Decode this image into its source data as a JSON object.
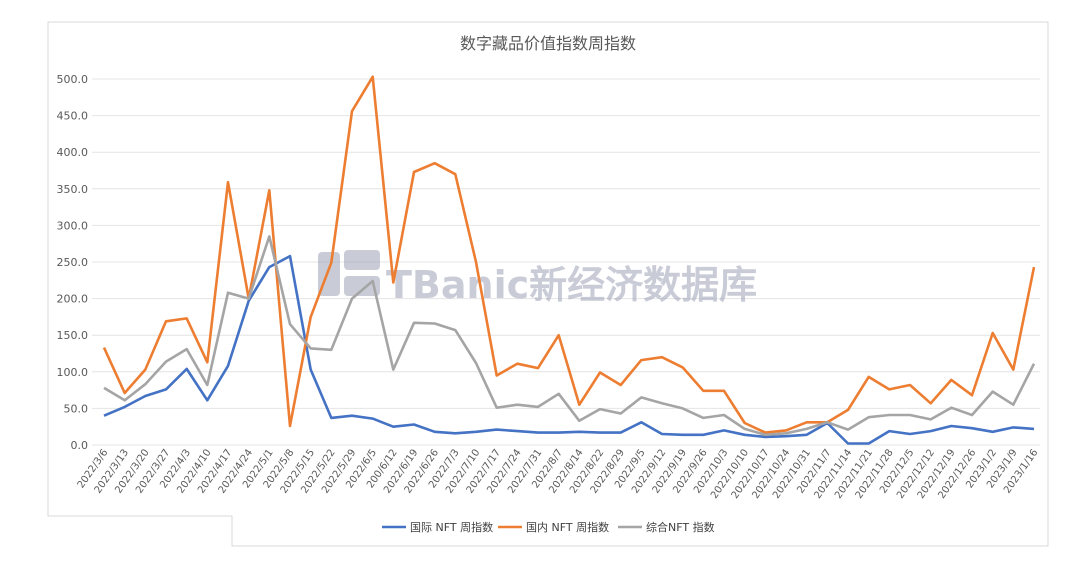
{
  "watermark": {
    "text": "TBanic新经济数据库"
  },
  "chart_data": {
    "type": "line",
    "title": "数字藏品价值指数周指数",
    "xlabel": "",
    "ylabel": "",
    "ylim": [
      0,
      500
    ],
    "yticks": [
      "0.0",
      "50.0",
      "100.0",
      "150.0",
      "200.0",
      "250.0",
      "300.0",
      "350.0",
      "400.0",
      "450.0",
      "500.0"
    ],
    "grid": true,
    "legend_position": "bottom",
    "x": [
      "2022/3/6",
      "2022/3/13",
      "2022/3/20",
      "2022/3/27",
      "2022/4/3",
      "2022/4/10",
      "2022/4/17",
      "2022/4/24",
      "2022/5/1",
      "2022/5/8",
      "2022/5/15",
      "2022/5/22",
      "2022/5/29",
      "2022/6/5",
      "200/6/12",
      "2022/6/19",
      "2022/6/26",
      "2022/7/3",
      "2022/7/10",
      "2022/7/17",
      "2022/7/24",
      "2022/7/31",
      "2022/8/7",
      "2022/8/14",
      "2022/8/22",
      "2022/8/29",
      "2022/9/5",
      "2022/9/12",
      "2022/9/19",
      "2022/9/26",
      "2022/10/3",
      "2022/10/10",
      "2022/10/17",
      "2022/10/24",
      "2022/10/31",
      "2022/11/7",
      "2022/11/14",
      "2022/11/21",
      "2022/11/28",
      "2022/12/5",
      "2022/12/12",
      "2022/12/19",
      "2022/12/26",
      "2023/1/2",
      "2023/1/9",
      "2023/1/16"
    ],
    "series": [
      {
        "name": "国际 NFT 周指数",
        "color": "#4472c4",
        "values": [
          40,
          52,
          67,
          76,
          104,
          61,
          108,
          197,
          243,
          258,
          103,
          37,
          40,
          36,
          25,
          28,
          18,
          16,
          18,
          21,
          19,
          17,
          17,
          18,
          17,
          17,
          31,
          15,
          14,
          14,
          20,
          14,
          11,
          12,
          14,
          30,
          2,
          2,
          19,
          15,
          19,
          26,
          23,
          18,
          24,
          22
        ]
      },
      {
        "name": "国内 NFT 周指数",
        "color": "#ed7d31",
        "values": [
          133,
          71,
          103,
          169,
          173,
          113,
          359,
          200,
          348,
          26,
          175,
          249,
          456,
          503,
          222,
          373,
          385,
          370,
          250,
          95,
          111,
          105,
          150,
          55,
          99,
          82,
          116,
          120,
          106,
          74,
          74,
          30,
          17,
          20,
          31,
          31,
          48,
          93,
          76,
          82,
          57,
          89,
          68,
          153,
          103,
          243
        ]
      },
      {
        "name": "综合NFT 指数",
        "color": "#a5a5a5",
        "values": [
          78,
          61,
          83,
          114,
          131,
          82,
          208,
          200,
          285,
          165,
          132,
          130,
          200,
          224,
          103,
          167,
          166,
          157,
          112,
          51,
          55,
          52,
          70,
          33,
          49,
          43,
          65,
          57,
          50,
          37,
          41,
          22,
          14,
          16,
          22,
          31,
          21,
          38,
          41,
          41,
          35,
          51,
          41,
          73,
          55,
          111
        ]
      }
    ]
  }
}
